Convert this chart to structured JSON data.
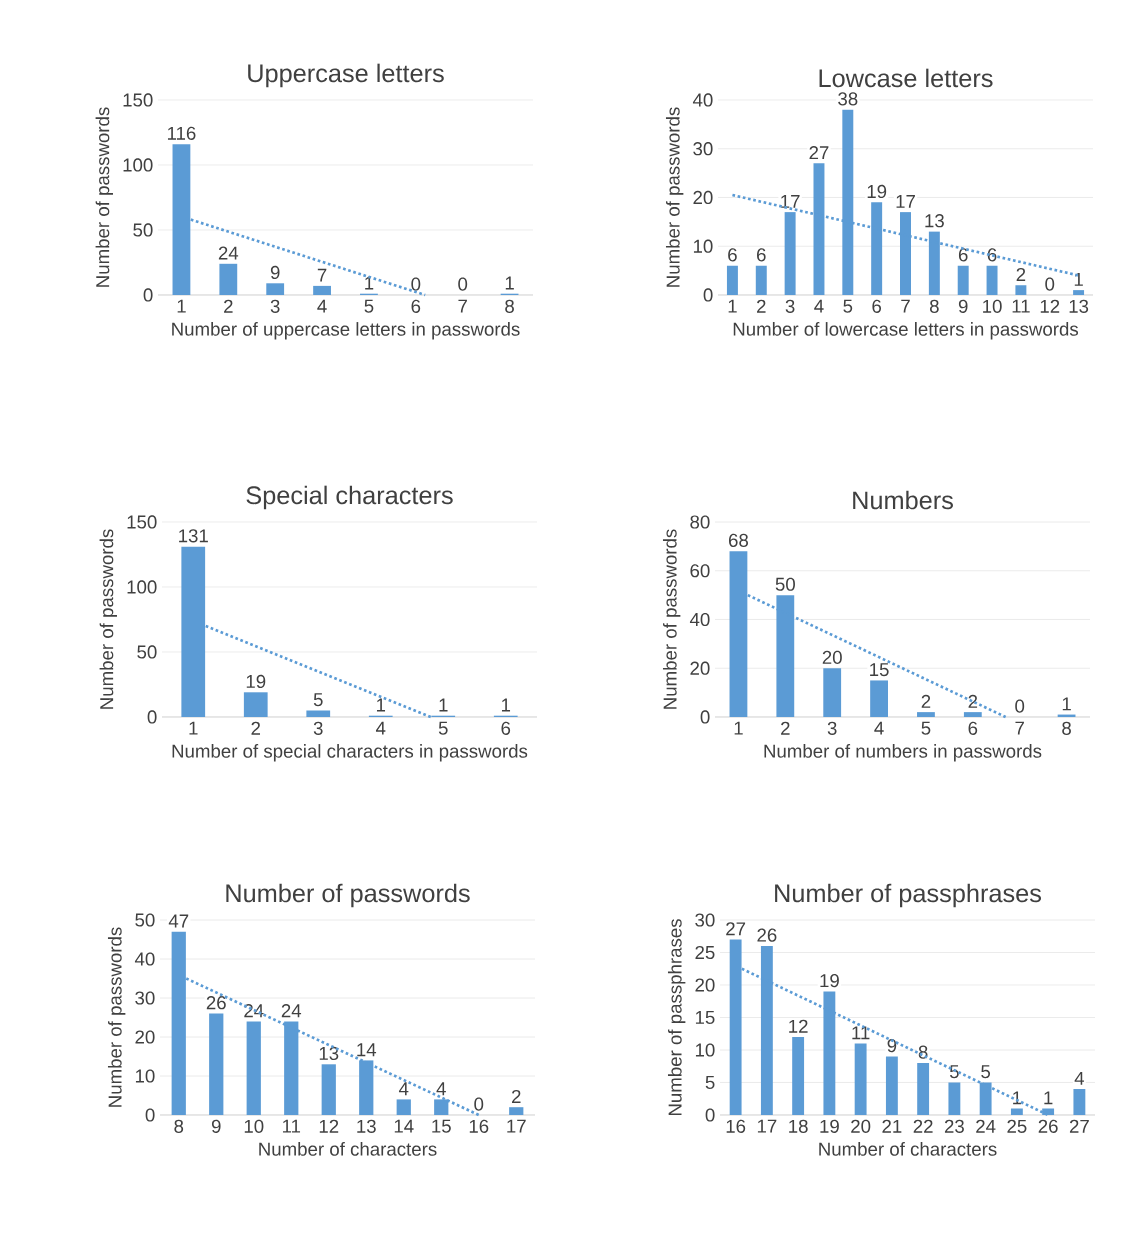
{
  "chart_data": [
    {
      "type": "bar",
      "title": "Uppercase letters",
      "xlabel": "Number of uppercase letters in passwords",
      "ylabel": "Number of passwords",
      "xlim": [
        0.5,
        8.5
      ],
      "xticks": [
        1,
        2,
        3,
        4,
        5,
        6,
        7,
        8
      ],
      "ylim": [
        0,
        150
      ],
      "yticks": [
        0,
        50,
        100,
        150
      ],
      "grid": "y",
      "series": [
        {
          "x": [
            1,
            2,
            3,
            4,
            5,
            6,
            7,
            8
          ],
          "values": [
            116,
            24,
            9,
            7,
            1,
            0,
            0,
            1
          ],
          "value_labels": [
            "116",
            "24",
            "9",
            "7",
            "1",
            "0",
            "0",
            "1"
          ],
          "color": "#5b9bd5"
        },
        {
          "type": "line",
          "x": [
            1.2,
            6.2
          ],
          "values": [
            58,
            0
          ],
          "color": "#5b9bd5",
          "line_style": "dotted"
        }
      ]
    },
    {
      "type": "bar",
      "title": "Lowcase letters",
      "xlabel": "Number of lowercase letters in passwords",
      "ylabel": "Number of passwords",
      "xlim": [
        0.5,
        13.5
      ],
      "xticks": [
        1,
        2,
        3,
        4,
        5,
        6,
        7,
        8,
        9,
        10,
        11,
        12,
        13
      ],
      "ylim": [
        0,
        40
      ],
      "yticks": [
        0,
        10,
        20,
        30,
        40
      ],
      "grid": "y",
      "series": [
        {
          "x": [
            1,
            2,
            3,
            4,
            5,
            6,
            7,
            8,
            9,
            10,
            11,
            12,
            13
          ],
          "values": [
            6,
            6,
            17,
            27,
            38,
            19,
            17,
            13,
            6,
            6,
            2,
            0,
            1
          ],
          "value_labels": [
            "6",
            "6",
            "17",
            "27",
            "38",
            "19",
            "17",
            "13",
            "6",
            "6",
            "2",
            "0",
            "1"
          ],
          "color": "#5b9bd5"
        },
        {
          "type": "line",
          "x": [
            1,
            13
          ],
          "values": [
            20.5,
            4
          ],
          "color": "#5b9bd5",
          "line_style": "dotted"
        }
      ]
    },
    {
      "type": "bar",
      "title": "Special characters",
      "xlabel": "Number of special characters in passwords",
      "ylabel": "Number of passwords",
      "xlim": [
        0.5,
        6.5
      ],
      "xticks": [
        1,
        2,
        3,
        4,
        5,
        6
      ],
      "ylim": [
        0,
        150
      ],
      "yticks": [
        0,
        50,
        100,
        150
      ],
      "grid": "y",
      "series": [
        {
          "x": [
            1,
            2,
            3,
            4,
            5,
            6
          ],
          "values": [
            131,
            19,
            5,
            1,
            1,
            1
          ],
          "value_labels": [
            "131",
            "19",
            "5",
            "1",
            "1",
            "1"
          ],
          "color": "#5b9bd5"
        },
        {
          "type": "line",
          "x": [
            1.2,
            4.8
          ],
          "values": [
            70,
            0
          ],
          "color": "#5b9bd5",
          "line_style": "dotted"
        }
      ]
    },
    {
      "type": "bar",
      "title": "Numbers",
      "xlabel": "Number of numbers in passwords",
      "ylabel": "Number of passwords",
      "xlim": [
        0.5,
        8.5
      ],
      "xticks": [
        1,
        2,
        3,
        4,
        5,
        6,
        7,
        8
      ],
      "ylim": [
        0,
        80
      ],
      "yticks": [
        0,
        20,
        40,
        60,
        80
      ],
      "grid": "y",
      "series": [
        {
          "x": [
            1,
            2,
            3,
            4,
            5,
            6,
            7,
            8
          ],
          "values": [
            68,
            50,
            20,
            15,
            2,
            2,
            0,
            1
          ],
          "value_labels": [
            "68",
            "50",
            "20",
            "15",
            "2",
            "2",
            "0",
            "1"
          ],
          "color": "#5b9bd5"
        },
        {
          "type": "line",
          "x": [
            1.2,
            6.7
          ],
          "values": [
            50,
            0
          ],
          "color": "#5b9bd5",
          "line_style": "dotted"
        }
      ]
    },
    {
      "type": "bar",
      "title": "Number of passwords",
      "xlabel": "Number of characters",
      "ylabel": "Number of passwords",
      "xlim": [
        7.5,
        17.5
      ],
      "xticks": [
        8,
        9,
        10,
        11,
        12,
        13,
        14,
        15,
        16,
        17
      ],
      "ylim": [
        0,
        50
      ],
      "yticks": [
        0,
        10,
        20,
        30,
        40,
        50
      ],
      "grid": "y",
      "series": [
        {
          "x": [
            8,
            9,
            10,
            11,
            12,
            13,
            14,
            15,
            16,
            17
          ],
          "values": [
            47,
            26,
            24,
            24,
            13,
            14,
            4,
            4,
            0,
            2
          ],
          "value_labels": [
            "47",
            "26",
            "24",
            "24",
            "13",
            "14",
            "4",
            "4",
            "0",
            "2"
          ],
          "color": "#5b9bd5"
        },
        {
          "type": "line",
          "x": [
            8.2,
            16
          ],
          "values": [
            35,
            0
          ],
          "color": "#5b9bd5",
          "line_style": "dotted"
        }
      ]
    },
    {
      "type": "bar",
      "title": "Number of passphrases",
      "xlabel": "Number of characters",
      "ylabel": "Number of passphrases",
      "xlim": [
        15.5,
        27.5
      ],
      "xticks": [
        16,
        17,
        18,
        19,
        20,
        21,
        22,
        23,
        24,
        25,
        26,
        27
      ],
      "ylim": [
        0,
        30
      ],
      "yticks": [
        0,
        5,
        10,
        15,
        20,
        25,
        30
      ],
      "grid": "y",
      "series": [
        {
          "x": [
            16,
            17,
            18,
            19,
            20,
            21,
            22,
            23,
            24,
            25,
            26,
            27
          ],
          "values": [
            27,
            26,
            12,
            19,
            11,
            9,
            8,
            5,
            5,
            1,
            1,
            4
          ],
          "value_labels": [
            "27",
            "26",
            "12",
            "19",
            "11",
            "9",
            "8",
            "5",
            "5",
            "1",
            "1",
            "4"
          ],
          "color": "#5b9bd5"
        },
        {
          "type": "line",
          "x": [
            16.2,
            26
          ],
          "values": [
            22.5,
            0
          ],
          "color": "#5b9bd5",
          "line_style": "dotted"
        }
      ]
    }
  ]
}
